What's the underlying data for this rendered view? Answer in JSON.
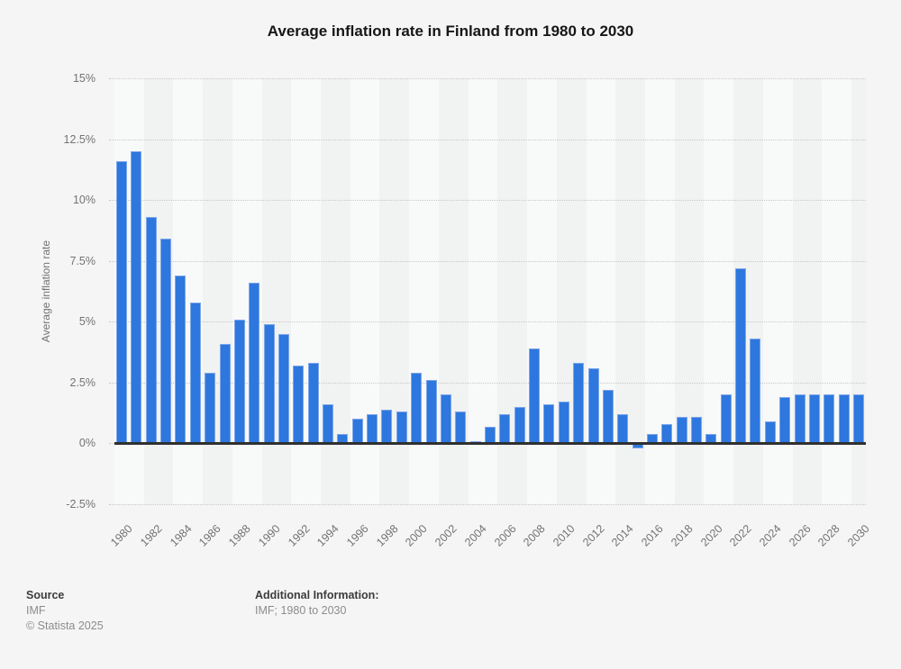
{
  "chart_data": {
    "type": "bar",
    "title": "Average inflation rate in Finland from 1980 to 2030",
    "ylabel": "Average inflation rate",
    "xlabel": "",
    "ylim": [
      -2.5,
      15
    ],
    "grid": true,
    "legend": false,
    "ytick_values": [
      15,
      12.5,
      10,
      7.5,
      5,
      2.5,
      0,
      -2.5
    ],
    "ytick_labels": [
      "15%",
      "12.5%",
      "10%",
      "7.5%",
      "5%",
      "2.5%",
      "0%",
      "-2.5%"
    ],
    "categories": [
      "1980",
      "1981",
      "1982",
      "1983",
      "1984",
      "1985",
      "1986",
      "1987",
      "1988",
      "1989",
      "1990",
      "1991",
      "1992",
      "1993",
      "1994",
      "1995",
      "1996",
      "1997",
      "1998",
      "1999",
      "2000",
      "2001",
      "2002",
      "2003",
      "2004",
      "2005",
      "2006",
      "2007",
      "2008",
      "2009",
      "2010",
      "2011",
      "2012",
      "2013",
      "2014",
      "2015",
      "2016",
      "2017",
      "2018",
      "2019",
      "2020",
      "2021",
      "2022",
      "2023",
      "2024",
      "2025",
      "2026",
      "2027",
      "2028",
      "2029",
      "2030"
    ],
    "values": [
      11.6,
      12.0,
      9.3,
      8.4,
      6.9,
      5.8,
      2.9,
      4.1,
      5.1,
      6.6,
      4.9,
      4.5,
      3.2,
      3.3,
      1.6,
      0.4,
      1.0,
      1.2,
      1.4,
      1.3,
      2.9,
      2.6,
      2.0,
      1.3,
      0.1,
      0.7,
      1.2,
      1.5,
      3.9,
      1.6,
      1.7,
      3.3,
      3.1,
      2.2,
      1.2,
      -0.2,
      0.4,
      0.8,
      1.1,
      1.1,
      0.4,
      2.0,
      7.2,
      4.3,
      0.9,
      1.9,
      2.0,
      2.0,
      2.0,
      2.0,
      2.0
    ],
    "xtick_labels": [
      "1980",
      "1982",
      "1984",
      "1986",
      "1988",
      "1990",
      "1992",
      "1994",
      "1996",
      "1998",
      "2000",
      "2002",
      "2004",
      "2006",
      "2008",
      "2010",
      "2012",
      "2014",
      "2016",
      "2018",
      "2020",
      "2022",
      "2024",
      "2026",
      "2028",
      "2030"
    ],
    "colors": {
      "bar": "#2d77de",
      "bar_edge": "#7ea7e9",
      "zero_line": "#303030",
      "gridline": "#c8c8c8",
      "band_light": "#f8f9f9",
      "band_dark": "#f1f2f2",
      "background": "#f5f5f5",
      "muted_text": "#737373"
    }
  },
  "footer": {
    "source_label": "Source",
    "source_value": "IMF",
    "copyright": "© Statista 2025",
    "additional_label": "Additional Information:",
    "additional_value": "IMF; 1980 to 2030"
  }
}
